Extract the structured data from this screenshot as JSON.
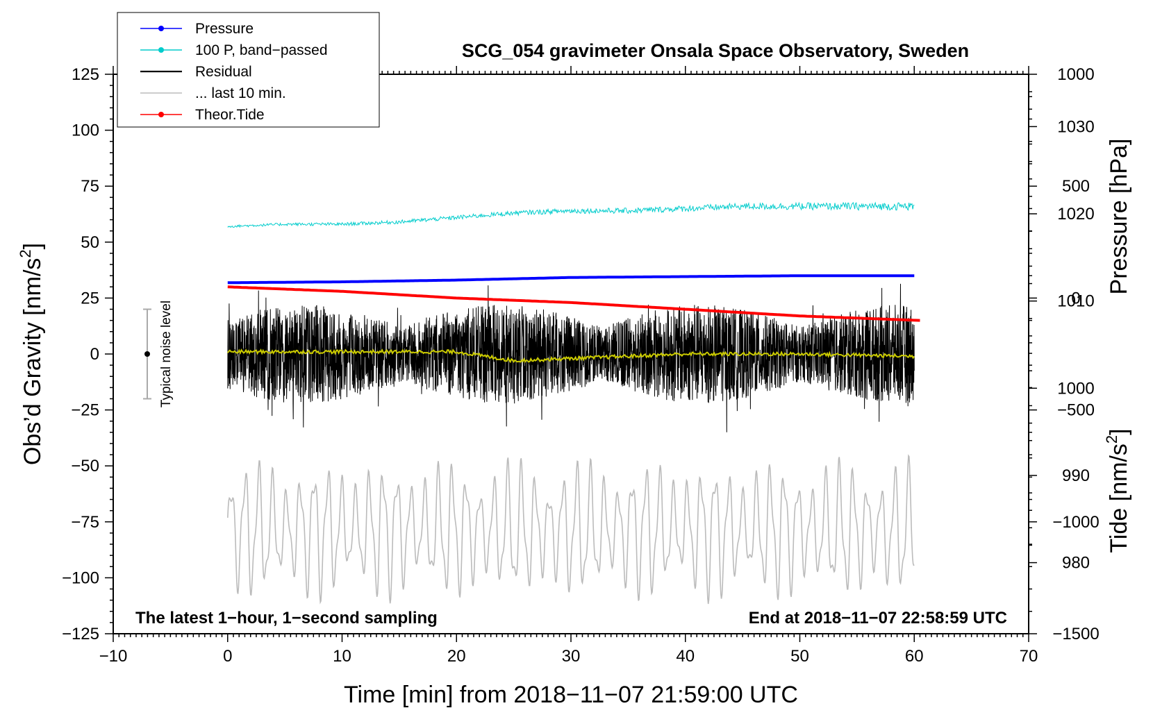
{
  "chart_data": {
    "type": "line",
    "title": "SCG_054 gravimeter Onsala Space Observatory, Sweden",
    "xlabel": "Time [min] from 2018−11−07 21:59:00 UTC",
    "ylabel_main": "Obs’d Gravity [nm/s",
    "ylabel_main_sup": "2",
    "ylabel_main_close": "]",
    "ylabel_pressure": "Pressure [hPa]",
    "ylabel_tide": "Tide [nm/s",
    "ylabel_tide_sup": "2",
    "ylabel_tide_close": "]",
    "xlim": [
      -10,
      70
    ],
    "ylim": [
      -125,
      125
    ],
    "x_ticks": [
      "−10",
      "0",
      "10",
      "20",
      "30",
      "40",
      "50",
      "60",
      "70"
    ],
    "y_ticks": [
      "−125",
      "−100",
      "−75",
      "−50",
      "−25",
      "0",
      "25",
      "50",
      "75",
      "100",
      "125"
    ],
    "pressure_ticks": [
      "980",
      "990",
      "1000",
      "1010",
      "1020",
      "1030"
    ],
    "pressure_tick_values": [
      980,
      990,
      1000,
      1010,
      1020,
      1030
    ],
    "pressure_axis_range": [
      971.85,
      1036.0
    ],
    "tide_ticks": [
      "−1500",
      "−1000",
      "−500",
      "0",
      "500",
      "1000"
    ],
    "tide_tick_values": [
      -1500,
      -1000,
      -500,
      0,
      500,
      1000
    ],
    "tide_axis_range": [
      -1500,
      1000
    ],
    "annotation_left": "The latest 1−hour, 1−second sampling",
    "annotation_right": "End at 2018−11−07 22:58:59 UTC",
    "noise_label": "Typical noise level",
    "noise_range": [
      -20,
      20
    ],
    "legend": [
      {
        "label": "Pressure",
        "color": "#0000ff",
        "marker": true
      },
      {
        "label": "100 P, band−passed",
        "color": "#00cccc",
        "marker": true
      },
      {
        "label": "Residual",
        "color": "#000000",
        "marker": false
      },
      {
        "label": "... last 10 min.",
        "color": "#bbbbbb",
        "marker": false
      },
      {
        "label": "Theor.Tide",
        "color": "#ff0000",
        "marker": true
      }
    ],
    "series": [
      {
        "name": "Pressure",
        "color": "#0000ff",
        "x_range": [
          0,
          60
        ],
        "points": [
          [
            0,
            1012.1
          ],
          [
            10,
            1012.2
          ],
          [
            20,
            1012.4
          ],
          [
            30,
            1012.7
          ],
          [
            40,
            1012.8
          ],
          [
            50,
            1012.9
          ],
          [
            60,
            1012.9
          ]
        ]
      },
      {
        "name": "100 P, band−passed",
        "color": "#00cccc",
        "x_range": [
          0,
          60
        ],
        "points": [
          [
            0,
            57
          ],
          [
            5,
            58
          ],
          [
            10,
            58
          ],
          [
            15,
            59
          ],
          [
            20,
            61
          ],
          [
            25,
            63
          ],
          [
            30,
            64
          ],
          [
            35,
            64
          ],
          [
            40,
            65
          ],
          [
            45,
            66
          ],
          [
            50,
            66
          ],
          [
            55,
            66
          ],
          [
            60,
            66
          ]
        ]
      },
      {
        "name": "Residual",
        "color": "#000000",
        "x_range": [
          0,
          60
        ],
        "amplitude_range": [
          -35,
          41
        ]
      },
      {
        "name": "Residual (smoothed)",
        "color": "#cccc00",
        "points": [
          [
            0,
            1
          ],
          [
            10,
            1
          ],
          [
            20,
            1
          ],
          [
            25,
            -3
          ],
          [
            30,
            -2
          ],
          [
            40,
            0
          ],
          [
            50,
            0
          ],
          [
            60,
            -1
          ]
        ]
      },
      {
        "name": "... last 10 min.",
        "color": "#bbbbbb",
        "x_range": [
          0,
          60
        ],
        "amplitude_range": [
          -112,
          -45
        ]
      },
      {
        "name": "Theor.Tide",
        "color": "#ff0000",
        "x_range": [
          0,
          60.5
        ],
        "points": [
          [
            0,
            50
          ],
          [
            10,
            30
          ],
          [
            20,
            0
          ],
          [
            30,
            -20
          ],
          [
            40,
            -50
          ],
          [
            50,
            -80
          ],
          [
            60.5,
            -100
          ]
        ]
      }
    ]
  }
}
